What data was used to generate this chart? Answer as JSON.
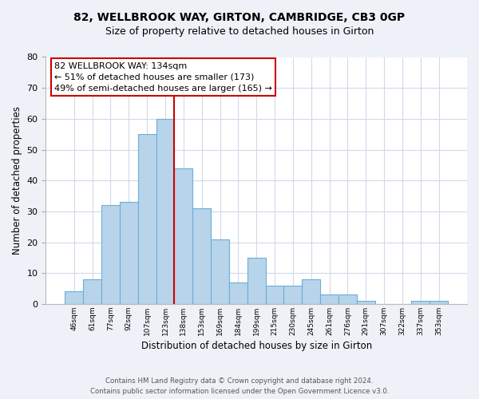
{
  "title": "82, WELLBROOK WAY, GIRTON, CAMBRIDGE, CB3 0GP",
  "subtitle": "Size of property relative to detached houses in Girton",
  "xlabel": "Distribution of detached houses by size in Girton",
  "ylabel": "Number of detached properties",
  "bar_labels": [
    "46sqm",
    "61sqm",
    "77sqm",
    "92sqm",
    "107sqm",
    "123sqm",
    "138sqm",
    "153sqm",
    "169sqm",
    "184sqm",
    "199sqm",
    "215sqm",
    "230sqm",
    "245sqm",
    "261sqm",
    "276sqm",
    "291sqm",
    "307sqm",
    "322sqm",
    "337sqm",
    "353sqm"
  ],
  "bar_values": [
    4,
    8,
    32,
    33,
    55,
    60,
    44,
    31,
    21,
    7,
    15,
    6,
    6,
    8,
    3,
    3,
    1,
    0,
    0,
    1,
    1
  ],
  "bar_color": "#b8d4ea",
  "bar_edge_color": "#6baed6",
  "vline_x_idx": 6,
  "vline_color": "#cc0000",
  "annotation_title": "82 WELLBROOK WAY: 134sqm",
  "annotation_line1": "← 51% of detached houses are smaller (173)",
  "annotation_line2": "49% of semi-detached houses are larger (165) →",
  "annotation_box_color": "#ffffff",
  "annotation_box_edge": "#cc0000",
  "ylim": [
    0,
    80
  ],
  "yticks": [
    0,
    10,
    20,
    30,
    40,
    50,
    60,
    70,
    80
  ],
  "footer1": "Contains HM Land Registry data © Crown copyright and database right 2024.",
  "footer2": "Contains public sector information licensed under the Open Government Licence v3.0.",
  "bg_color": "#eef2f8",
  "plot_bg_color": "#ffffff",
  "grid_color": "#d0daea"
}
